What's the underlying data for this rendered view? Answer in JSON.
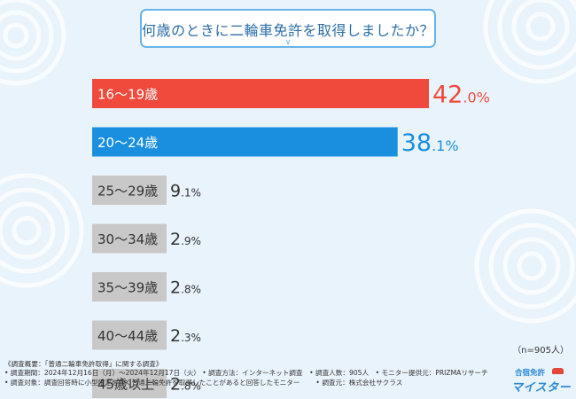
{
  "title": "何歳のときに二輪車免許を取得しましたか？",
  "chart_data": {
    "type": "bar",
    "orientation": "horizontal",
    "unit": "%",
    "categories": [
      "16～19歳",
      "20～24歳",
      "25～29歳",
      "30～34歳",
      "35～39歳",
      "40～44歳",
      "45歳以上"
    ],
    "values": [
      42.0,
      38.1,
      9.1,
      2.9,
      2.8,
      2.3,
      2.8
    ],
    "value_labels": [
      "42.0",
      "38.1",
      "9.1",
      "2.9",
      "2.8",
      "2.3",
      "2.8"
    ],
    "colors": [
      "#ef4a3c",
      "#1a8fdf",
      "#c8c8c8",
      "#c8c8c8",
      "#c8c8c8",
      "#c8c8c8",
      "#c8c8c8"
    ],
    "label_colors": [
      "#ffffff",
      "#ffffff",
      "#333333",
      "#333333",
      "#333333",
      "#333333",
      "#333333"
    ],
    "value_colors": [
      "#ef4a3c",
      "#1a8fdf",
      "#333333",
      "#333333",
      "#333333",
      "#333333",
      "#333333"
    ]
  },
  "sample_note": "（n=905人）",
  "footer": {
    "line1": "《調査概要：「普通二輪車免許取得」に関する調査》",
    "line2": "• 調査期間：2024年12月16日（月）～2024年12月17日（火） • 調査方法：インターネット調査　• 調査人数：905人　• モニター提供元：PRIZMAリサーチ",
    "line3a": "• 調査対象：調査回答時に小型限定を除く普通二輪免許を取得したことがあると回答したモニター",
    "line3b": "• 調査元：株式会社サクラス"
  },
  "logo": {
    "top": "合宿免許",
    "main": "マイスター"
  }
}
